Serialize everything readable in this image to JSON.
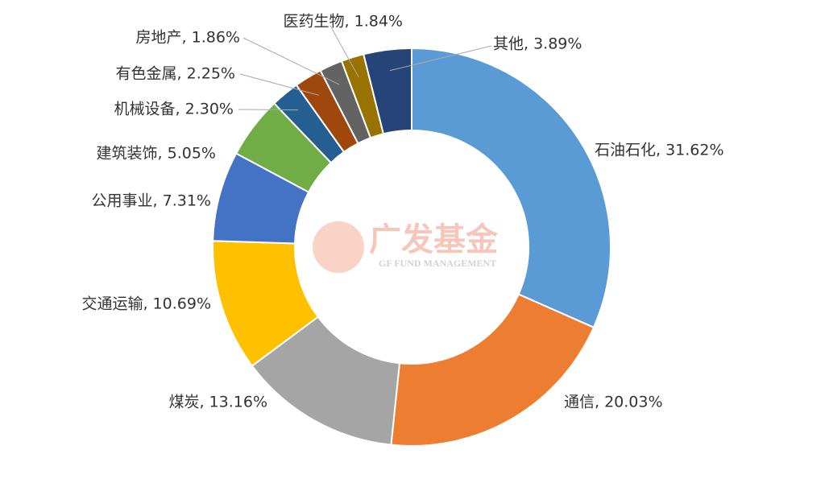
{
  "chart_data": {
    "type": "donut",
    "values": [
      31.62,
      20.03,
      13.16,
      10.69,
      7.31,
      5.05,
      2.3,
      2.25,
      1.86,
      1.84,
      3.89
    ],
    "value_labels": [
      "石油石化, 31.62%",
      "通信, 20.03%",
      "煤炭, 13.16%",
      "交通运输, 10.69%",
      "公用事业, 7.31%",
      "建筑装饰, 5.05%",
      "机械设备, 2.30%",
      "有色金属, 2.25%",
      "房地产, 1.86%",
      "医药生物, 1.84%",
      "其他, 3.89%"
    ],
    "colors": [
      "#5b9bd5",
      "#ed7d31",
      "#a5a5a5",
      "#ffc000",
      "#4472c4",
      "#70ad47",
      "#255e91",
      "#9e480e",
      "#636363",
      "#997300",
      "#264478"
    ],
    "watermark": {
      "title": "广发基金",
      "subtitle": "GF FUND MANAGEMENT"
    }
  }
}
